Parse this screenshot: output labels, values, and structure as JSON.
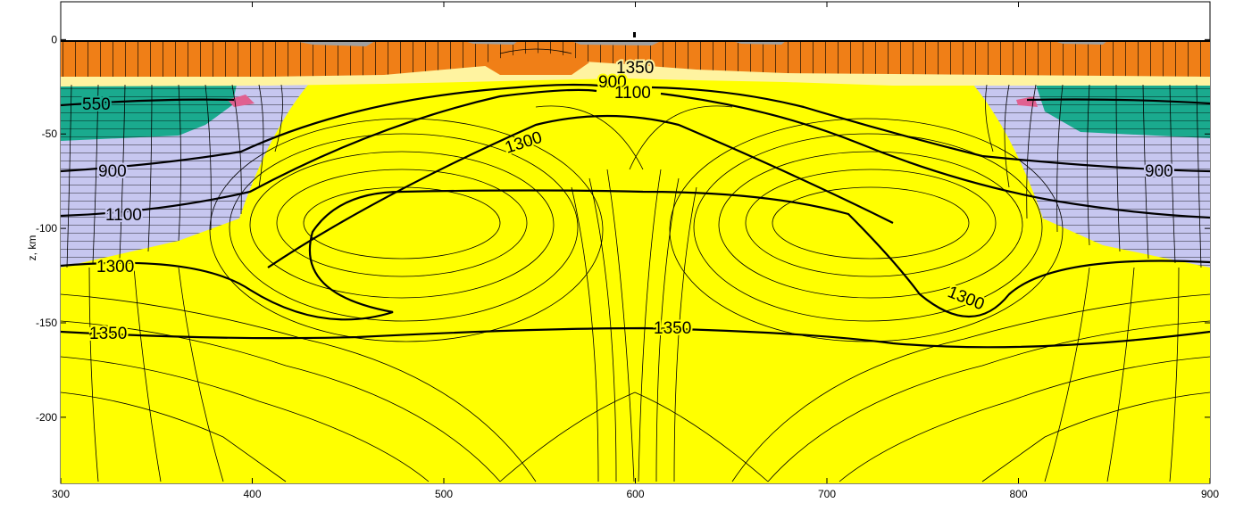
{
  "chart_data": {
    "type": "contour",
    "xlabel": "",
    "ylabel": "z, km",
    "xlim": [
      300,
      900
    ],
    "ylim": [
      -235,
      20
    ],
    "x_ticks": [
      300,
      400,
      500,
      600,
      700,
      800,
      900
    ],
    "y_ticks": [
      0,
      -50,
      -100,
      -150,
      -200
    ],
    "colors": {
      "asthenosphere": "#ffff00",
      "upper_crust": "#f07f17",
      "lower_crust": "#1aaa8e",
      "lithospheric_mantle": "#c7c7f0",
      "sediment": "#fff3a0",
      "air_sticky": "#a0a0a0",
      "melt": "#e06090"
    },
    "isotherm_labels": [
      {
        "value": "550",
        "x": 318,
        "z": -32
      },
      {
        "value": "900",
        "x": 330,
        "z": -68
      },
      {
        "value": "1100",
        "x": 337,
        "z": -90
      },
      {
        "value": "1300",
        "x": 331,
        "z": -118
      },
      {
        "value": "1350",
        "x": 327,
        "z": -152
      },
      {
        "value": "1350",
        "x": 623,
        "z": -15
      },
      {
        "value": "900",
        "x": 600,
        "z": -21
      },
      {
        "value": "1100",
        "x": 655,
        "z": -26
      },
      {
        "value": "1300",
        "x": 578,
        "z": -51
      },
      {
        "value": "1350",
        "x": 626,
        "z": -150
      },
      {
        "value": "1300",
        "x": 798,
        "z": -136
      },
      {
        "value": "900",
        "x": 874,
        "z": -68
      }
    ]
  }
}
